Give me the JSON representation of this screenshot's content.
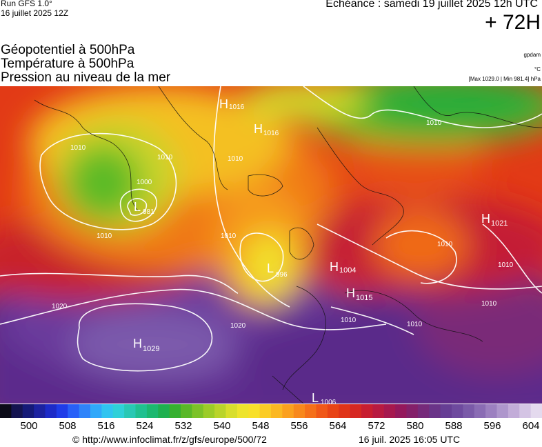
{
  "header": {
    "run": "Run GFS 1.0°",
    "run_date": "16 juillet 2025 12Z",
    "echeance": "Echéance : samedi 19 juillet 2025 12h UTC",
    "leadtime": "+ 72H"
  },
  "titles": [
    "Géopotentiel à 500hPa",
    "Température à 500hPa",
    "Pression au niveau de la mer"
  ],
  "units": {
    "geopotential": "gpdam",
    "temperature": "°C",
    "pressure": "[Max 1029.0 | Min 981.4] hPa"
  },
  "pressure_centers": [
    {
      "type": "L",
      "value": "981"
    },
    {
      "type": "L",
      "value": "996"
    },
    {
      "type": "L",
      "value": "1006"
    },
    {
      "type": "H",
      "value": "1029"
    },
    {
      "type": "H",
      "value": "1021"
    },
    {
      "type": "H",
      "value": "1015"
    },
    {
      "type": "H",
      "value": "1016"
    },
    {
      "type": "H",
      "value": "1004"
    },
    {
      "type": "H",
      "value": "1016"
    }
  ],
  "isobar_labels": [
    "1020",
    "1020",
    "1010",
    "1010",
    "1010",
    "1010",
    "1010",
    "1010",
    "1000",
    "1010",
    "1010",
    "1010",
    "1010",
    "1010"
  ],
  "colorbar": {
    "ticks": [
      "500",
      "508",
      "516",
      "524",
      "532",
      "540",
      "548",
      "556",
      "564",
      "572",
      "580",
      "588",
      "596",
      "604"
    ],
    "colors": [
      "#0b0b18",
      "#141450",
      "#151a78",
      "#1c22a0",
      "#1d2bc8",
      "#1f3ce8",
      "#2860f8",
      "#2f84fa",
      "#30a8fa",
      "#30c4f0",
      "#2fd0d8",
      "#29c8b4",
      "#20c090",
      "#1cb870",
      "#1fb050",
      "#36b030",
      "#5ab828",
      "#7cc228",
      "#9ccc28",
      "#bad42a",
      "#d8de2c",
      "#eee42c",
      "#f8e02a",
      "#fbcc26",
      "#fbb822",
      "#fba01e",
      "#f8881c",
      "#f5701a",
      "#f05818",
      "#e84416",
      "#e03418",
      "#d62822",
      "#c81e30",
      "#b81a40",
      "#a6184e",
      "#94185c",
      "#84206a",
      "#762a7a",
      "#6a3488",
      "#663e94",
      "#6e4a9e",
      "#7a5aa8",
      "#8a6cb4",
      "#9c80c0",
      "#ae96cc",
      "#c2acd8",
      "#d4c4e4",
      "#e4daee"
    ]
  },
  "footer": {
    "url": "© http://www.infoclimat.fr/z/gfs/europe/500/72",
    "date": "16 juil. 2025 16:05 UTC"
  }
}
